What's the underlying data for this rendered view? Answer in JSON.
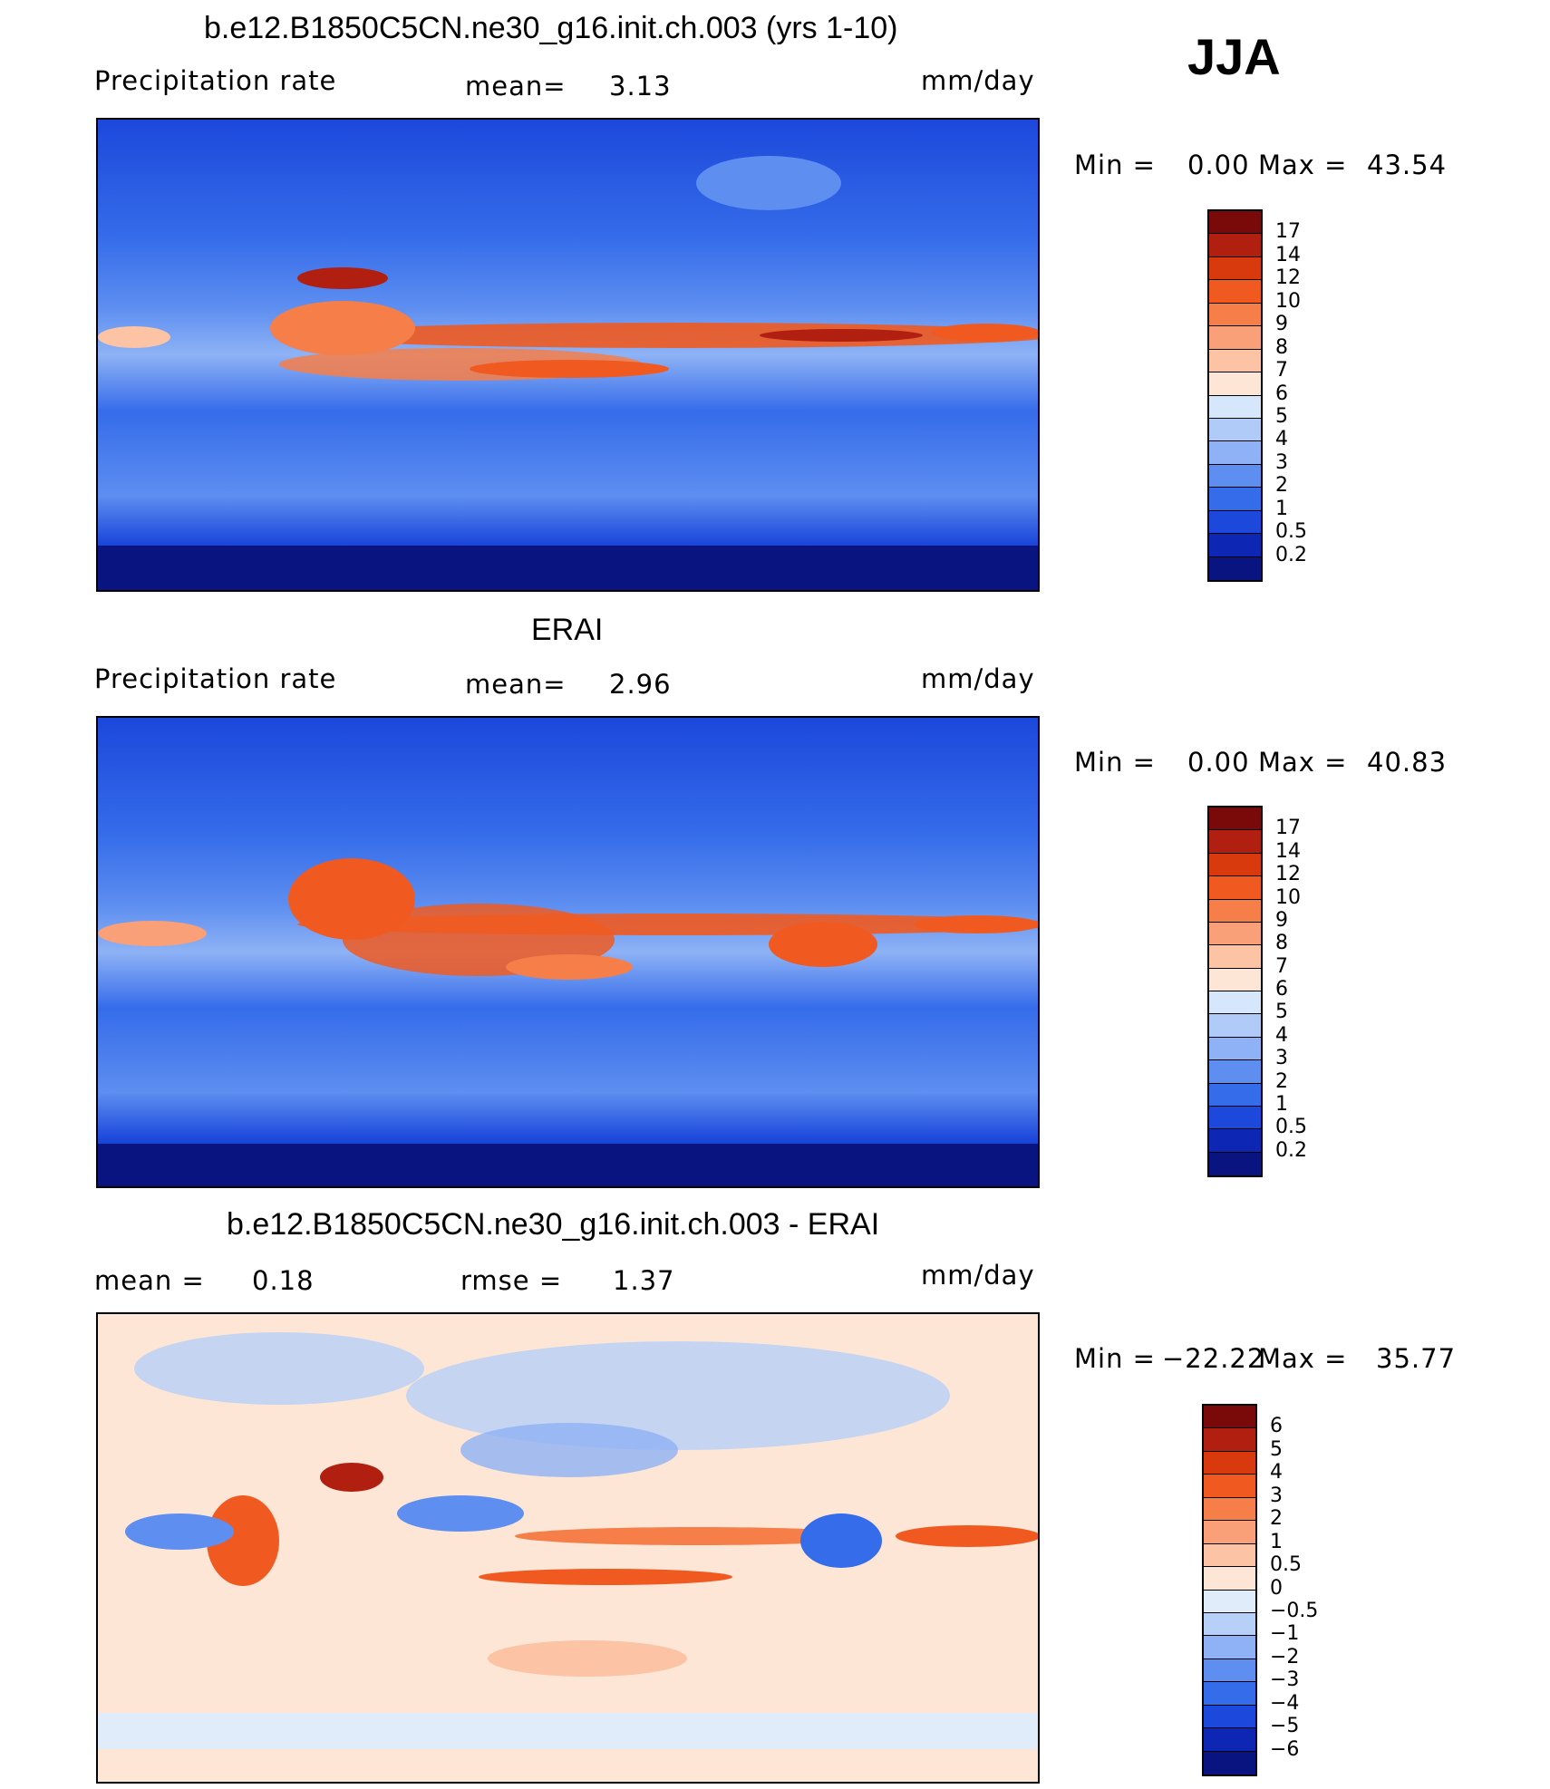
{
  "season": "JJA",
  "panels": [
    {
      "title": "b.e12.B1850C5CN.ne30_g16.init.ch.003 (yrs 1-10)",
      "left_label": "Precipitation  rate",
      "mid_label": "mean=",
      "mid_value": "3.13",
      "units": "mm/day",
      "min_label": "Min  =",
      "min_value": "0.00",
      "max_label": "Max  =",
      "max_value": "43.54",
      "color_levels": [
        "17",
        "14",
        "12",
        "10",
        "9",
        "8",
        "7",
        "6",
        "5",
        "4",
        "3",
        "2",
        "1",
        "0.5",
        "0.2"
      ],
      "color_bar": [
        "#7a0a0a",
        "#b01f10",
        "#d83a0e",
        "#f05a20",
        "#f67e48",
        "#f9a079",
        "#fcc3a5",
        "#fee6d6",
        "#d6e7fb",
        "#b0cbf7",
        "#8eb2f5",
        "#5d8ef0",
        "#356cea",
        "#1c48db",
        "#0d26b3",
        "#0a1480"
      ]
    },
    {
      "title": "ERAI",
      "left_label": "Precipitation  rate",
      "mid_label": "mean=",
      "mid_value": "2.96",
      "units": "mm/day",
      "min_label": "Min  =",
      "min_value": "0.00",
      "max_label": "Max  =",
      "max_value": "40.83",
      "color_levels": [
        "17",
        "14",
        "12",
        "10",
        "9",
        "8",
        "7",
        "6",
        "5",
        "4",
        "3",
        "2",
        "1",
        "0.5",
        "0.2"
      ],
      "color_bar": [
        "#7a0a0a",
        "#b01f10",
        "#d83a0e",
        "#f05a20",
        "#f67e48",
        "#f9a079",
        "#fcc3a5",
        "#fee6d6",
        "#d6e7fb",
        "#b0cbf7",
        "#8eb2f5",
        "#5d8ef0",
        "#356cea",
        "#1c48db",
        "#0d26b3",
        "#0a1480"
      ]
    },
    {
      "title": "b.e12.B1850C5CN.ne30_g16.init.ch.003 - ERAI",
      "left_label": "mean  =",
      "left_value": "0.18",
      "mid_label": "rmse  =",
      "mid_value": "1.37",
      "units": "mm/day",
      "min_label": "Min  =",
      "min_value": "−22.22",
      "max_label": "Max  =",
      "max_value": "35.77",
      "color_levels": [
        "6",
        "5",
        "4",
        "3",
        "2",
        "1",
        "0.5",
        "0",
        "−0.5",
        "−1",
        "−2",
        "−3",
        "−4",
        "−5",
        "−6"
      ],
      "color_bar": [
        "#7a0a0a",
        "#b01f10",
        "#d83a0e",
        "#f05a20",
        "#f67e48",
        "#f9a079",
        "#fcc3a5",
        "#fee6d6",
        "#e1ecfb",
        "#b7d0f7",
        "#8eb2f5",
        "#5d8ef0",
        "#356cea",
        "#1c48db",
        "#0d26b3",
        "#0a1480"
      ]
    }
  ],
  "map_colors": {
    "ocean_base": "#1c48db",
    "polar": "#0a1480",
    "ocean_light": "#5d8ef0",
    "tropics_high": "#f05a20",
    "tropics_peak": "#b01f10",
    "diff_base": "#fee6d6",
    "diff_pos": "#f9a079",
    "diff_neg": "#8eb2f5",
    "coast": "#000000"
  }
}
